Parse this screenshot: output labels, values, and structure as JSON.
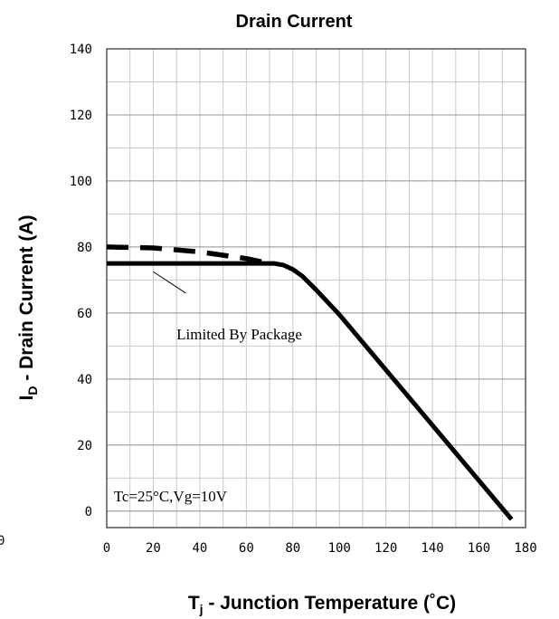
{
  "chart_data": {
    "type": "line",
    "title": "Drain Current",
    "xlabel": {
      "main": "T",
      "sub": "j",
      "rest": " - Junction Temperature (˚C)"
    },
    "ylabel": {
      "main": "I",
      "sub": "D",
      "rest": " - Drain Current (A)"
    },
    "xlim": [
      0,
      180
    ],
    "ylim": [
      -5,
      140
    ],
    "x_ticks": [
      0,
      20,
      40,
      60,
      80,
      100,
      120,
      140,
      160,
      180
    ],
    "y_ticks": [
      0,
      20,
      40,
      60,
      80,
      100,
      120,
      140
    ],
    "x_minor_step": 10,
    "y_minor_step": 10,
    "grid": true,
    "series": [
      {
        "style": "solid",
        "x": [
          0,
          68,
          72,
          76,
          80,
          84,
          90,
          100,
          174
        ],
        "y": [
          75,
          75,
          75,
          74.5,
          73.2,
          71.2,
          67,
          59.5,
          -2.5
        ]
      },
      {
        "style": "dashed",
        "x": [
          0,
          20,
          40,
          50,
          60,
          70
        ],
        "y": [
          80,
          79.7,
          78.5,
          77.5,
          76.5,
          75
        ]
      }
    ],
    "annotations": [
      {
        "text": "Limited By Package",
        "x": 30,
        "y": 52,
        "pointer": {
          "from": [
            34,
            66
          ],
          "to": [
            20,
            72.5
          ]
        }
      },
      {
        "text": "Tc=25°C,Vg=10V",
        "x": 3,
        "y": 3
      }
    ],
    "stray_text": "0"
  }
}
